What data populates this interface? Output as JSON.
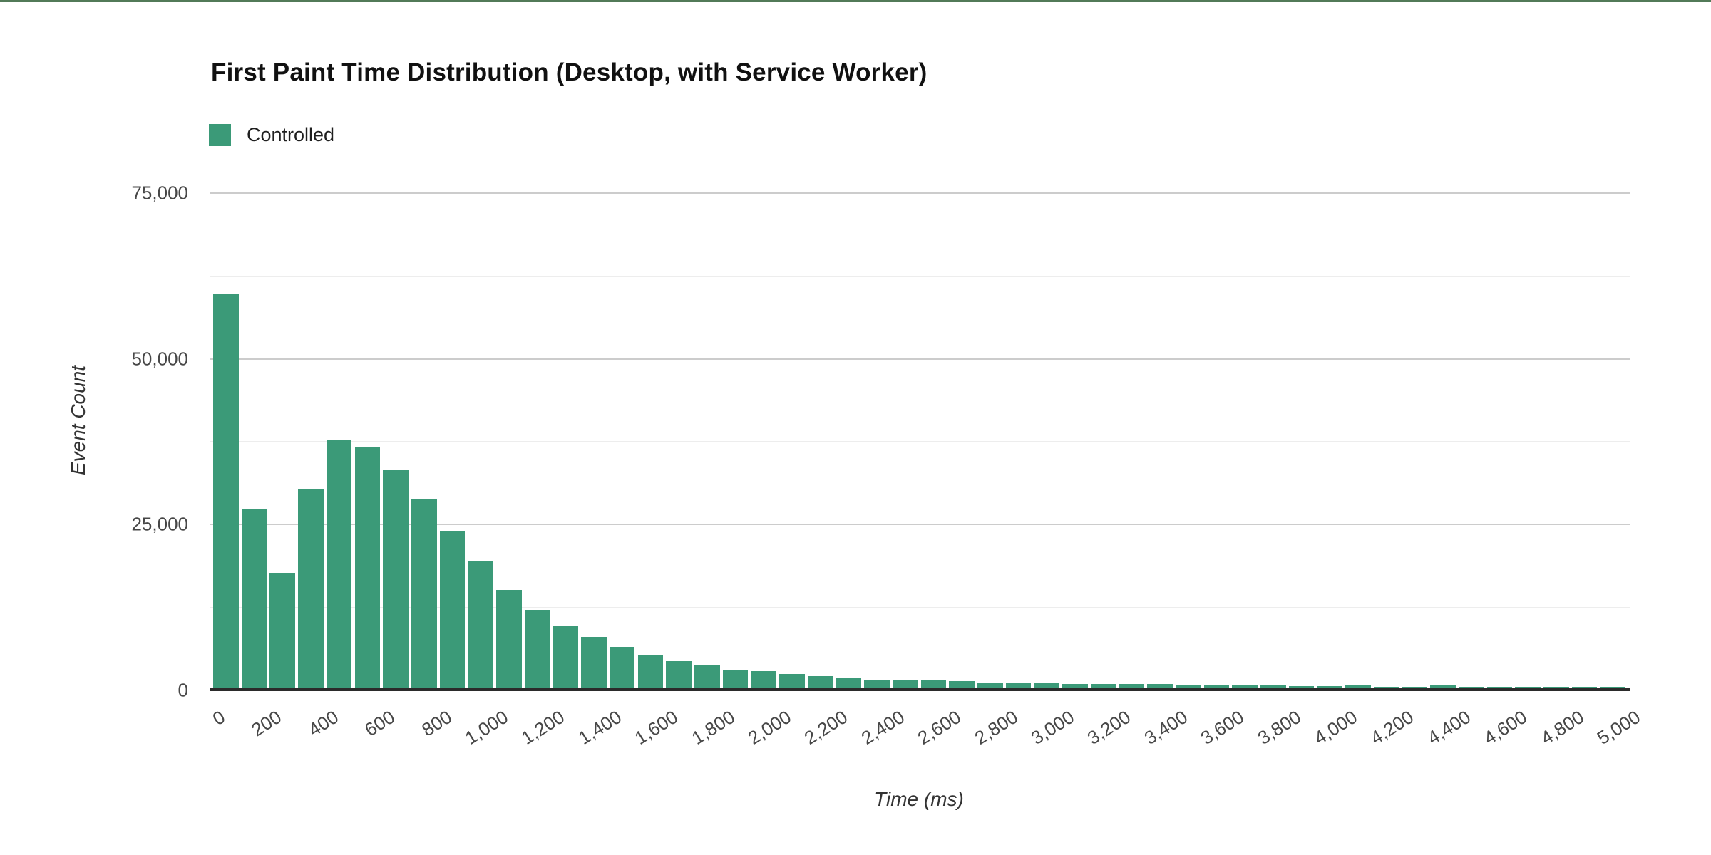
{
  "page": {
    "top_border_color": "#527A58",
    "background": "#ffffff"
  },
  "colors": {
    "bar": "#3B9A78",
    "major_gridline": "#cccccc",
    "minor_gridline": "#ededed",
    "axis_line": "#2b2b2b",
    "tick_label": "#474747",
    "axis_title": "#333333",
    "title": "#111111",
    "legend_label": "#1f1f1f"
  },
  "chart_data": {
    "type": "bar",
    "title": "First Paint Time Distribution (Desktop, with Service Worker)",
    "xlabel": "Time (ms)",
    "ylabel": "Event Count",
    "legend": [
      {
        "label": "Controlled",
        "color": "#3B9A78"
      }
    ],
    "legend_position": "top-left",
    "grid": true,
    "bin_size_ms": 100,
    "x_range_ms": [
      0,
      5000
    ],
    "ylim": [
      0,
      87500
    ],
    "y_ticks": [
      {
        "value": 0,
        "label": "0"
      },
      {
        "value": 25000,
        "label": "25,000"
      },
      {
        "value": 50000,
        "label": "50,000"
      },
      {
        "value": 75000,
        "label": "75,000"
      }
    ],
    "y_minor_ticks": [
      12500,
      37500,
      62500
    ],
    "x_tick_interval_ms": 200,
    "x_tick_labels": [
      "0",
      "200",
      "400",
      "600",
      "800",
      "1,000",
      "1,200",
      "1,400",
      "1,600",
      "1,800",
      "2,000",
      "2,200",
      "2,400",
      "2,600",
      "2,800",
      "3,000",
      "3,200",
      "3,400",
      "3,600",
      "3,800",
      "4,000",
      "4,200",
      "4,400",
      "4,600",
      "4,800",
      "5,000"
    ],
    "series": [
      {
        "name": "Controlled",
        "color": "#3B9A78",
        "values": [
          59700,
          27300,
          17600,
          30200,
          37700,
          36700,
          33100,
          28700,
          24000,
          19500,
          15100,
          12000,
          9600,
          8000,
          6400,
          5300,
          4300,
          3650,
          3050,
          2750,
          2400,
          2050,
          1750,
          1550,
          1450,
          1350,
          1250,
          1100,
          1000,
          950,
          900,
          860,
          830,
          810,
          780,
          720,
          680,
          620,
          580,
          550,
          640,
          380,
          430,
          620,
          400,
          430,
          470,
          400,
          430,
          380
        ]
      }
    ]
  }
}
